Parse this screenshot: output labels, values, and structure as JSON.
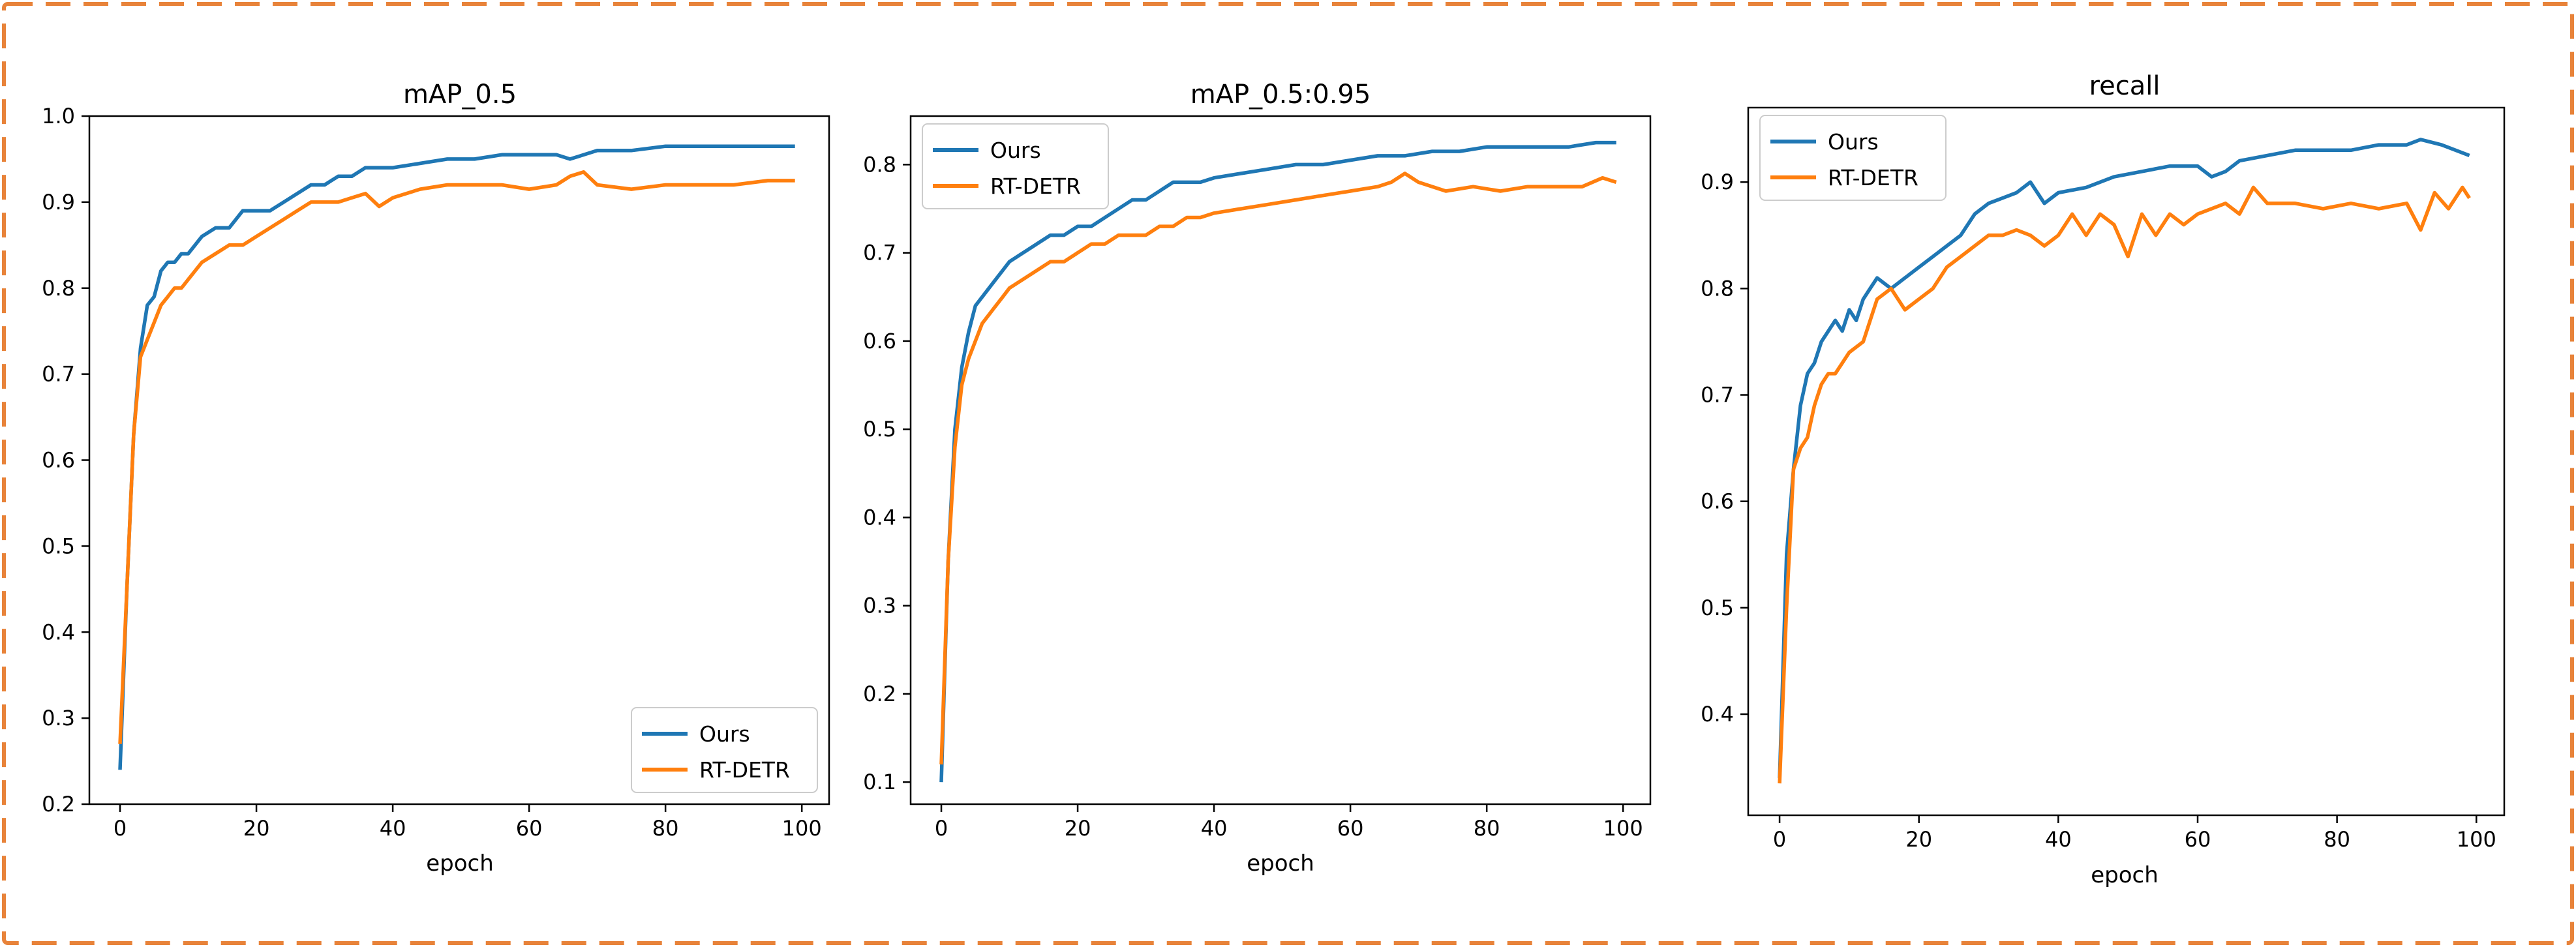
{
  "colors": {
    "ours": "#1f77b4",
    "rtdetr": "#ff7f0e",
    "frame": "#e8833a"
  },
  "chart_data": [
    {
      "type": "line",
      "title": "mAP_0.5",
      "xlabel": "epoch",
      "ylabel": "",
      "xlim": [
        -4.5,
        104
      ],
      "ylim": [
        0.2,
        1.0
      ],
      "xticks": [
        0,
        20,
        40,
        60,
        80,
        100
      ],
      "yticks": [
        0.2,
        0.3,
        0.4,
        0.5,
        0.6,
        0.7,
        0.8,
        0.9,
        1.0
      ],
      "legend": "lower-right",
      "series": [
        {
          "name": "Ours",
          "color": "#1f77b4",
          "points": [
            [
              0,
              0.24
            ],
            [
              1,
              0.45
            ],
            [
              2,
              0.63
            ],
            [
              3,
              0.73
            ],
            [
              4,
              0.78
            ],
            [
              5,
              0.79
            ],
            [
              6,
              0.82
            ],
            [
              7,
              0.83
            ],
            [
              8,
              0.83
            ],
            [
              9,
              0.84
            ],
            [
              10,
              0.84
            ],
            [
              12,
              0.86
            ],
            [
              14,
              0.87
            ],
            [
              16,
              0.87
            ],
            [
              18,
              0.89
            ],
            [
              20,
              0.89
            ],
            [
              22,
              0.89
            ],
            [
              24,
              0.9
            ],
            [
              26,
              0.91
            ],
            [
              28,
              0.92
            ],
            [
              30,
              0.92
            ],
            [
              32,
              0.93
            ],
            [
              34,
              0.93
            ],
            [
              36,
              0.94
            ],
            [
              38,
              0.94
            ],
            [
              40,
              0.94
            ],
            [
              44,
              0.945
            ],
            [
              48,
              0.95
            ],
            [
              52,
              0.95
            ],
            [
              56,
              0.955
            ],
            [
              60,
              0.955
            ],
            [
              64,
              0.955
            ],
            [
              66,
              0.95
            ],
            [
              70,
              0.96
            ],
            [
              75,
              0.96
            ],
            [
              80,
              0.965
            ],
            [
              85,
              0.965
            ],
            [
              90,
              0.965
            ],
            [
              95,
              0.965
            ],
            [
              99,
              0.965
            ]
          ]
        },
        {
          "name": "RT-DETR",
          "color": "#ff7f0e",
          "points": [
            [
              0,
              0.27
            ],
            [
              1,
              0.45
            ],
            [
              2,
              0.63
            ],
            [
              3,
              0.72
            ],
            [
              4,
              0.74
            ],
            [
              5,
              0.76
            ],
            [
              6,
              0.78
            ],
            [
              7,
              0.79
            ],
            [
              8,
              0.8
            ],
            [
              9,
              0.8
            ],
            [
              10,
              0.81
            ],
            [
              12,
              0.83
            ],
            [
              14,
              0.84
            ],
            [
              16,
              0.85
            ],
            [
              18,
              0.85
            ],
            [
              20,
              0.86
            ],
            [
              22,
              0.87
            ],
            [
              24,
              0.88
            ],
            [
              26,
              0.89
            ],
            [
              28,
              0.9
            ],
            [
              30,
              0.9
            ],
            [
              32,
              0.9
            ],
            [
              34,
              0.905
            ],
            [
              36,
              0.91
            ],
            [
              38,
              0.895
            ],
            [
              40,
              0.905
            ],
            [
              44,
              0.915
            ],
            [
              48,
              0.92
            ],
            [
              52,
              0.92
            ],
            [
              56,
              0.92
            ],
            [
              60,
              0.915
            ],
            [
              64,
              0.92
            ],
            [
              66,
              0.93
            ],
            [
              68,
              0.935
            ],
            [
              70,
              0.92
            ],
            [
              75,
              0.915
            ],
            [
              80,
              0.92
            ],
            [
              85,
              0.92
            ],
            [
              90,
              0.92
            ],
            [
              95,
              0.925
            ],
            [
              99,
              0.925
            ]
          ]
        }
      ]
    },
    {
      "type": "line",
      "title": "mAP_0.5:0.95",
      "xlabel": "epoch",
      "ylabel": "",
      "xlim": [
        -4.5,
        104
      ],
      "ylim": [
        0.075,
        0.855
      ],
      "xticks": [
        0,
        20,
        40,
        60,
        80,
        100
      ],
      "yticks": [
        0.1,
        0.2,
        0.3,
        0.4,
        0.5,
        0.6,
        0.7,
        0.8
      ],
      "legend": "upper-left",
      "series": [
        {
          "name": "Ours",
          "color": "#1f77b4",
          "points": [
            [
              0,
              0.1
            ],
            [
              1,
              0.35
            ],
            [
              2,
              0.5
            ],
            [
              3,
              0.57
            ],
            [
              4,
              0.61
            ],
            [
              5,
              0.64
            ],
            [
              6,
              0.65
            ],
            [
              7,
              0.66
            ],
            [
              8,
              0.67
            ],
            [
              9,
              0.68
            ],
            [
              10,
              0.69
            ],
            [
              12,
              0.7
            ],
            [
              14,
              0.71
            ],
            [
              16,
              0.72
            ],
            [
              18,
              0.72
            ],
            [
              20,
              0.73
            ],
            [
              22,
              0.73
            ],
            [
              24,
              0.74
            ],
            [
              26,
              0.75
            ],
            [
              28,
              0.76
            ],
            [
              30,
              0.76
            ],
            [
              32,
              0.77
            ],
            [
              34,
              0.78
            ],
            [
              36,
              0.78
            ],
            [
              38,
              0.78
            ],
            [
              40,
              0.785
            ],
            [
              44,
              0.79
            ],
            [
              48,
              0.795
            ],
            [
              52,
              0.8
            ],
            [
              56,
              0.8
            ],
            [
              60,
              0.805
            ],
            [
              64,
              0.81
            ],
            [
              68,
              0.81
            ],
            [
              72,
              0.815
            ],
            [
              76,
              0.815
            ],
            [
              80,
              0.82
            ],
            [
              84,
              0.82
            ],
            [
              88,
              0.82
            ],
            [
              92,
              0.82
            ],
            [
              96,
              0.825
            ],
            [
              99,
              0.825
            ]
          ]
        },
        {
          "name": "RT-DETR",
          "color": "#ff7f0e",
          "points": [
            [
              0,
              0.12
            ],
            [
              1,
              0.35
            ],
            [
              2,
              0.48
            ],
            [
              3,
              0.55
            ],
            [
              4,
              0.58
            ],
            [
              5,
              0.6
            ],
            [
              6,
              0.62
            ],
            [
              7,
              0.63
            ],
            [
              8,
              0.64
            ],
            [
              9,
              0.65
            ],
            [
              10,
              0.66
            ],
            [
              12,
              0.67
            ],
            [
              14,
              0.68
            ],
            [
              16,
              0.69
            ],
            [
              18,
              0.69
            ],
            [
              20,
              0.7
            ],
            [
              22,
              0.71
            ],
            [
              24,
              0.71
            ],
            [
              26,
              0.72
            ],
            [
              28,
              0.72
            ],
            [
              30,
              0.72
            ],
            [
              32,
              0.73
            ],
            [
              34,
              0.73
            ],
            [
              36,
              0.74
            ],
            [
              38,
              0.74
            ],
            [
              40,
              0.745
            ],
            [
              44,
              0.75
            ],
            [
              48,
              0.755
            ],
            [
              52,
              0.76
            ],
            [
              56,
              0.765
            ],
            [
              60,
              0.77
            ],
            [
              64,
              0.775
            ],
            [
              66,
              0.78
            ],
            [
              68,
              0.79
            ],
            [
              70,
              0.78
            ],
            [
              74,
              0.77
            ],
            [
              78,
              0.775
            ],
            [
              82,
              0.77
            ],
            [
              86,
              0.775
            ],
            [
              90,
              0.775
            ],
            [
              94,
              0.775
            ],
            [
              97,
              0.785
            ],
            [
              99,
              0.78
            ]
          ]
        }
      ]
    },
    {
      "type": "line",
      "title": "recall",
      "xlabel": "epoch",
      "ylabel": "",
      "xlim": [
        -4.5,
        104
      ],
      "ylim": [
        0.305,
        0.97
      ],
      "xticks": [
        0,
        20,
        40,
        60,
        80,
        100
      ],
      "yticks": [
        0.4,
        0.5,
        0.6,
        0.7,
        0.8,
        0.9
      ],
      "legend": "upper-left",
      "series": [
        {
          "name": "Ours",
          "color": "#1f77b4",
          "points": [
            [
              0,
              0.34
            ],
            [
              1,
              0.55
            ],
            [
              2,
              0.63
            ],
            [
              3,
              0.69
            ],
            [
              4,
              0.72
            ],
            [
              5,
              0.73
            ],
            [
              6,
              0.75
            ],
            [
              7,
              0.76
            ],
            [
              8,
              0.77
            ],
            [
              9,
              0.76
            ],
            [
              10,
              0.78
            ],
            [
              11,
              0.77
            ],
            [
              12,
              0.79
            ],
            [
              13,
              0.8
            ],
            [
              14,
              0.81
            ],
            [
              16,
              0.8
            ],
            [
              18,
              0.81
            ],
            [
              20,
              0.82
            ],
            [
              22,
              0.83
            ],
            [
              24,
              0.84
            ],
            [
              26,
              0.85
            ],
            [
              28,
              0.87
            ],
            [
              30,
              0.88
            ],
            [
              32,
              0.885
            ],
            [
              34,
              0.89
            ],
            [
              36,
              0.9
            ],
            [
              38,
              0.88
            ],
            [
              40,
              0.89
            ],
            [
              44,
              0.895
            ],
            [
              48,
              0.905
            ],
            [
              52,
              0.91
            ],
            [
              56,
              0.915
            ],
            [
              60,
              0.915
            ],
            [
              62,
              0.905
            ],
            [
              64,
              0.91
            ],
            [
              66,
              0.92
            ],
            [
              70,
              0.925
            ],
            [
              74,
              0.93
            ],
            [
              78,
              0.93
            ],
            [
              82,
              0.93
            ],
            [
              86,
              0.935
            ],
            [
              90,
              0.935
            ],
            [
              92,
              0.94
            ],
            [
              95,
              0.935
            ],
            [
              99,
              0.925
            ]
          ]
        },
        {
          "name": "RT-DETR",
          "color": "#ff7f0e",
          "points": [
            [
              0,
              0.335
            ],
            [
              1,
              0.5
            ],
            [
              2,
              0.63
            ],
            [
              3,
              0.65
            ],
            [
              4,
              0.66
            ],
            [
              5,
              0.69
            ],
            [
              6,
              0.71
            ],
            [
              7,
              0.72
            ],
            [
              8,
              0.72
            ],
            [
              9,
              0.73
            ],
            [
              10,
              0.74
            ],
            [
              12,
              0.75
            ],
            [
              14,
              0.79
            ],
            [
              16,
              0.8
            ],
            [
              18,
              0.78
            ],
            [
              20,
              0.79
            ],
            [
              22,
              0.8
            ],
            [
              24,
              0.82
            ],
            [
              26,
              0.83
            ],
            [
              28,
              0.84
            ],
            [
              30,
              0.85
            ],
            [
              32,
              0.85
            ],
            [
              34,
              0.855
            ],
            [
              36,
              0.85
            ],
            [
              38,
              0.84
            ],
            [
              40,
              0.85
            ],
            [
              42,
              0.87
            ],
            [
              44,
              0.85
            ],
            [
              46,
              0.87
            ],
            [
              48,
              0.86
            ],
            [
              50,
              0.83
            ],
            [
              52,
              0.87
            ],
            [
              54,
              0.85
            ],
            [
              56,
              0.87
            ],
            [
              58,
              0.86
            ],
            [
              60,
              0.87
            ],
            [
              64,
              0.88
            ],
            [
              66,
              0.87
            ],
            [
              68,
              0.895
            ],
            [
              70,
              0.88
            ],
            [
              74,
              0.88
            ],
            [
              78,
              0.875
            ],
            [
              82,
              0.88
            ],
            [
              86,
              0.875
            ],
            [
              90,
              0.88
            ],
            [
              92,
              0.855
            ],
            [
              94,
              0.89
            ],
            [
              96,
              0.875
            ],
            [
              98,
              0.895
            ],
            [
              99,
              0.885
            ]
          ]
        }
      ]
    }
  ]
}
